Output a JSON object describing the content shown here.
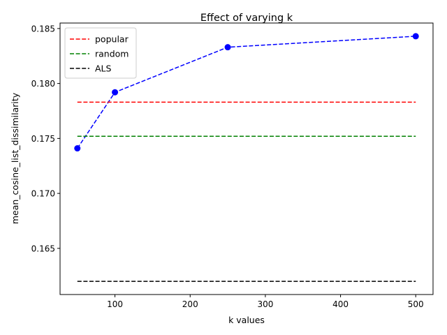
{
  "chart_data": {
    "type": "line",
    "title": "Effect of varying k",
    "xlabel": "k values",
    "ylabel": "mean_cosine_list_dissimilarity",
    "xlim": [
      27,
      523
    ],
    "ylim": [
      0.1608,
      0.1855
    ],
    "xticks": [
      100,
      200,
      300,
      400,
      500
    ],
    "yticks": [
      0.165,
      0.17,
      0.175,
      0.18,
      0.185
    ],
    "ytick_labels": [
      "0.165",
      "0.170",
      "0.175",
      "0.180",
      "0.185"
    ],
    "grid": false,
    "legend_position": "top-left",
    "series": [
      {
        "name": "",
        "kind": "points",
        "x": [
          50,
          100,
          250,
          500
        ],
        "y": [
          0.1741,
          0.1792,
          0.1833,
          0.1843
        ],
        "color": "#0000ff",
        "dash": true,
        "marker": "circle"
      },
      {
        "name": "popular",
        "kind": "hline",
        "x": [
          50,
          500
        ],
        "y": 0.1783,
        "color": "#ff0000",
        "dash": true
      },
      {
        "name": "random",
        "kind": "hline",
        "x": [
          50,
          500
        ],
        "y": 0.1752,
        "color": "#008000",
        "dash": true
      },
      {
        "name": "ALS",
        "kind": "hline",
        "x": [
          50,
          500
        ],
        "y": 0.162,
        "color": "#000000",
        "dash": true
      }
    ]
  }
}
